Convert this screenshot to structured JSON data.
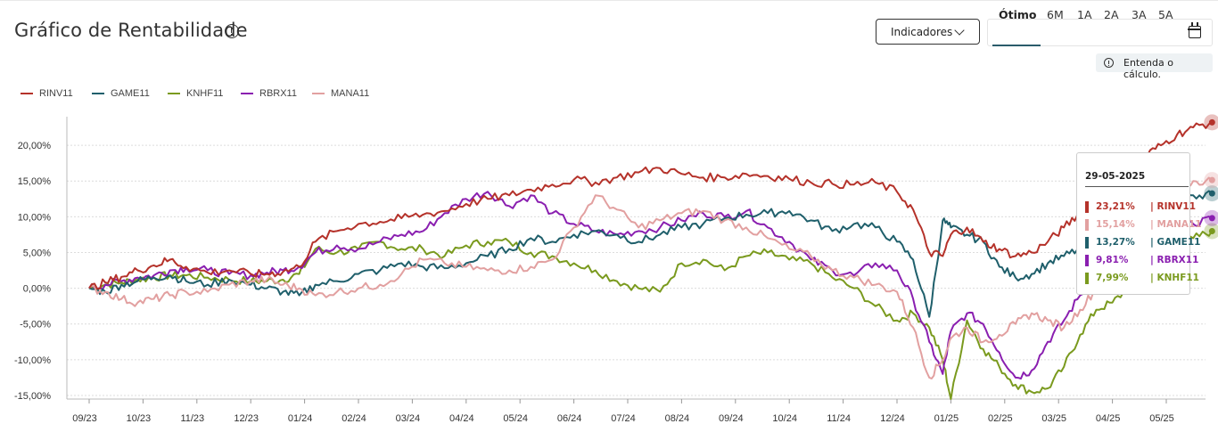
{
  "header": {
    "title": "Gráfico de Rentabilidade",
    "indicators_label": "Indicadores",
    "periods": [
      "Ótimo",
      "6M",
      "1A",
      "2A",
      "3A",
      "5A"
    ],
    "active_period": "Ótimo",
    "calc_label": "Entenda o cálculo."
  },
  "tooltip": {
    "date": "29-05-2025",
    "rows": [
      {
        "value": "23,21%",
        "name": "| RINV11",
        "color": "#b5322a"
      },
      {
        "value": "15,14%",
        "name": "| MANA11",
        "color": "#e2a0a0"
      },
      {
        "value": "13,27%",
        "name": "| GAME11",
        "color": "#1f5f6b"
      },
      {
        "value": "9,81%",
        "name": "| RBRX11",
        "color": "#8a1fb0"
      },
      {
        "value": "7,99%",
        "name": "| KNHF11",
        "color": "#7a9a1e"
      }
    ]
  },
  "chart_data": {
    "type": "line",
    "x_ticks": [
      "09/23",
      "10/23",
      "11/23",
      "12/23",
      "01/24",
      "02/24",
      "03/24",
      "04/24",
      "05/24",
      "06/24",
      "07/24",
      "08/24",
      "09/24",
      "10/24",
      "11/24",
      "12/24",
      "01/25",
      "02/25",
      "03/25",
      "04/25",
      "05/25"
    ],
    "y_ticks": [
      "20,00%",
      "15,00%",
      "10,00%",
      "5,00%",
      "0,00%",
      "-5,00%",
      "-10,00%",
      "-15,00%"
    ],
    "y_tick_values": [
      20,
      15,
      10,
      5,
      0,
      -5,
      -10,
      -15
    ],
    "ylim": [
      -15.5,
      24
    ],
    "x_range": [
      0,
      20.85
    ],
    "grid": true,
    "legend_position": "top-left",
    "series": [
      {
        "name": "RINV11",
        "color": "#b5322a",
        "x": [
          0,
          0.3,
          0.6,
          0.9,
          1.2,
          1.5,
          1.8,
          2.2,
          2.6,
          3.0,
          3.3,
          3.6,
          3.9,
          4.2,
          4.6,
          5.0,
          5.4,
          5.8,
          6.2,
          6.6,
          7.0,
          7.4,
          7.8,
          8.2,
          8.6,
          9.0,
          9.4,
          9.8,
          10.2,
          10.6,
          11.0,
          11.4,
          11.8,
          12.2,
          12.6,
          13.0,
          13.4,
          13.8,
          14.2,
          14.6,
          15.0,
          15.3,
          15.6,
          15.85,
          16.0,
          16.3,
          16.6,
          16.9,
          17.2,
          17.5,
          17.8,
          18.1,
          18.4,
          18.7,
          19.0,
          19.3,
          19.6,
          19.9,
          20.2,
          20.5,
          20.85
        ],
        "values": [
          0,
          0.8,
          1.6,
          2.5,
          3.2,
          4.0,
          3.0,
          2.2,
          2.5,
          2.0,
          2.0,
          2.3,
          3.0,
          6.5,
          8.0,
          9.0,
          9.3,
          9.8,
          10.3,
          10.8,
          11.8,
          12.5,
          13.0,
          13.8,
          14.5,
          15.2,
          14.8,
          15.5,
          16.2,
          16.8,
          16.0,
          15.5,
          15.5,
          16.0,
          15.7,
          15.3,
          14.8,
          14.6,
          14.5,
          14.8,
          13.5,
          11.0,
          5.0,
          4.5,
          7.5,
          8.5,
          6.5,
          5.5,
          4.5,
          5.0,
          6.5,
          8.5,
          10.5,
          12.5,
          14.5,
          16.0,
          18.5,
          20.0,
          21.5,
          22.5,
          23.21
        ]
      },
      {
        "name": "MANA11",
        "color": "#e2a0a0",
        "x": [
          0,
          0.3,
          0.6,
          0.9,
          1.2,
          1.5,
          1.8,
          2.2,
          2.6,
          3.0,
          3.3,
          3.6,
          3.9,
          4.2,
          4.6,
          5.0,
          5.4,
          5.8,
          6.2,
          6.6,
          7.0,
          7.4,
          7.8,
          8.2,
          8.6,
          9.0,
          9.4,
          9.8,
          10.2,
          10.6,
          11.0,
          11.4,
          11.8,
          12.2,
          12.6,
          13.0,
          13.4,
          13.8,
          14.2,
          14.6,
          15.0,
          15.3,
          15.6,
          15.85,
          16.0,
          16.3,
          16.6,
          16.9,
          17.2,
          17.5,
          17.8,
          18.1,
          18.4,
          18.7,
          19.0,
          19.3,
          19.6,
          19.9,
          20.2,
          20.5,
          20.85
        ],
        "values": [
          0,
          -0.5,
          -1.5,
          -2.0,
          -1.5,
          -1.0,
          -0.5,
          -0.5,
          0.5,
          1.0,
          1.2,
          0.5,
          0.0,
          -1.0,
          -0.5,
          0.0,
          0.5,
          2.0,
          4.0,
          3.5,
          3.0,
          2.5,
          2.5,
          3.0,
          4.0,
          8.5,
          13.0,
          11.0,
          8.5,
          9.5,
          10.5,
          10.8,
          9.5,
          8.5,
          7.0,
          5.5,
          4.5,
          2.5,
          1.5,
          0.5,
          -0.5,
          -5.5,
          -12.5,
          -10.0,
          -7.0,
          -5.5,
          -7.5,
          -6.5,
          -5.0,
          -3.5,
          -4.5,
          -5.5,
          -3.0,
          0.0,
          4.0,
          8.0,
          11.0,
          13.0,
          14.0,
          15.0,
          15.14
        ]
      },
      {
        "name": "GAME11",
        "color": "#1f5f6b",
        "x": [
          0,
          0.3,
          0.6,
          0.9,
          1.2,
          1.5,
          1.8,
          2.2,
          2.6,
          3.0,
          3.3,
          3.6,
          3.9,
          4.2,
          4.6,
          5.0,
          5.4,
          5.8,
          6.2,
          6.6,
          7.0,
          7.4,
          7.8,
          8.2,
          8.6,
          9.0,
          9.4,
          9.8,
          10.2,
          10.6,
          11.0,
          11.4,
          11.8,
          12.2,
          12.6,
          13.0,
          13.4,
          13.8,
          14.2,
          14.6,
          15.0,
          15.3,
          15.6,
          15.85,
          16.0,
          16.3,
          16.6,
          16.9,
          17.2,
          17.5,
          17.8,
          18.1,
          18.4,
          18.7,
          19.0,
          19.3,
          19.6,
          19.9,
          20.2,
          20.5,
          20.85
        ],
        "values": [
          0,
          -0.5,
          0.5,
          1.0,
          1.5,
          1.8,
          1.0,
          0.5,
          1.2,
          0.5,
          0.0,
          -0.5,
          -1.0,
          0.5,
          1.0,
          2.0,
          2.5,
          3.5,
          3.0,
          2.8,
          3.5,
          4.5,
          5.5,
          7.0,
          6.5,
          7.5,
          8.0,
          7.5,
          6.5,
          7.5,
          8.5,
          9.0,
          9.8,
          10.3,
          10.5,
          10.8,
          9.5,
          8.0,
          9.0,
          8.5,
          6.5,
          4.0,
          -4.0,
          9.5,
          8.5,
          7.5,
          6.5,
          3.0,
          1.5,
          2.0,
          3.5,
          4.5,
          5.5,
          7.0,
          8.5,
          10.0,
          12.0,
          13.5,
          14.0,
          13.0,
          13.27
        ]
      },
      {
        "name": "RBRX11",
        "color": "#8a1fb0",
        "x": [
          0,
          0.3,
          0.6,
          0.9,
          1.2,
          1.5,
          1.8,
          2.2,
          2.6,
          3.0,
          3.3,
          3.6,
          3.9,
          4.2,
          4.6,
          5.0,
          5.4,
          5.8,
          6.2,
          6.6,
          7.0,
          7.4,
          7.8,
          8.2,
          8.6,
          9.0,
          9.4,
          9.8,
          10.2,
          10.6,
          11.0,
          11.4,
          11.8,
          12.2,
          12.6,
          13.0,
          13.4,
          13.8,
          14.2,
          14.6,
          15.0,
          15.3,
          15.6,
          15.85,
          16.0,
          16.3,
          16.6,
          16.9,
          17.2,
          17.5,
          17.8,
          18.1,
          18.4,
          18.7,
          19.0,
          19.3,
          19.6,
          19.9,
          20.2,
          20.5,
          20.85
        ],
        "values": [
          0,
          0.5,
          1.0,
          1.5,
          1.8,
          2.5,
          2.8,
          2.5,
          2.0,
          1.8,
          2.2,
          2.5,
          3.0,
          5.0,
          6.0,
          5.5,
          6.5,
          7.5,
          8.0,
          10.5,
          12.5,
          13.5,
          11.5,
          13.0,
          10.5,
          9.0,
          8.0,
          7.5,
          8.0,
          8.5,
          9.5,
          10.5,
          10.0,
          10.8,
          8.5,
          6.5,
          4.0,
          2.5,
          1.8,
          3.5,
          2.5,
          -1.5,
          -7.5,
          -12.0,
          -6.0,
          -3.5,
          -5.0,
          -9.0,
          -12.5,
          -11.5,
          -7.5,
          -4.5,
          -1.0,
          2.0,
          3.0,
          4.0,
          6.0,
          8.5,
          9.5,
          9.0,
          9.81
        ]
      },
      {
        "name": "KNHF11",
        "color": "#7a9a1e",
        "x": [
          0,
          0.3,
          0.6,
          0.9,
          1.2,
          1.5,
          1.8,
          2.2,
          2.6,
          3.0,
          3.3,
          3.6,
          3.9,
          4.2,
          4.6,
          5.0,
          5.4,
          5.8,
          6.2,
          6.6,
          7.0,
          7.4,
          7.8,
          8.2,
          8.6,
          9.0,
          9.4,
          9.8,
          10.2,
          10.6,
          11.0,
          11.4,
          11.8,
          12.2,
          12.6,
          13.0,
          13.4,
          13.8,
          14.2,
          14.6,
          15.0,
          15.3,
          15.6,
          15.85,
          16.0,
          16.3,
          16.6,
          16.9,
          17.2,
          17.5,
          17.8,
          18.1,
          18.4,
          18.7,
          19.0,
          19.3,
          19.6,
          19.9,
          20.2,
          20.5,
          20.85
        ],
        "values": [
          0,
          0.5,
          0.8,
          1.2,
          1.5,
          1.8,
          1.8,
          1.5,
          1.2,
          1.0,
          1.0,
          1.2,
          2.0,
          5.5,
          5.0,
          5.5,
          6.5,
          5.5,
          5.5,
          4.5,
          6.0,
          6.5,
          6.5,
          5.0,
          4.5,
          3.5,
          2.5,
          1.0,
          0.0,
          -0.5,
          3.5,
          4.0,
          2.5,
          4.5,
          5.0,
          4.0,
          3.5,
          1.5,
          0.0,
          -2.5,
          -4.5,
          -3.5,
          -5.5,
          -10.0,
          -15.5,
          -4.5,
          -8.5,
          -11.0,
          -13.5,
          -14.5,
          -14.0,
          -11.0,
          -6.5,
          -3.0,
          -2.0,
          0.0,
          3.5,
          5.5,
          6.5,
          7.0,
          7.99
        ]
      }
    ]
  }
}
